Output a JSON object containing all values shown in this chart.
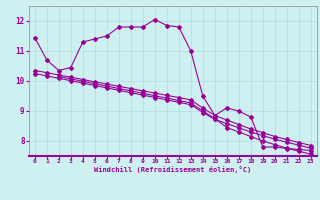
{
  "background_color": "#cff0f0",
  "grid_color": "#aadddd",
  "line_color": "#990099",
  "axis_label_color": "#990099",
  "xlim": [
    -0.5,
    23.5
  ],
  "ylim": [
    7.5,
    12.5
  ],
  "yticks": [
    8,
    9,
    10,
    11,
    12
  ],
  "xticks": [
    0,
    1,
    2,
    3,
    4,
    5,
    6,
    7,
    8,
    9,
    10,
    11,
    12,
    13,
    14,
    15,
    16,
    17,
    18,
    19,
    20,
    21,
    22,
    23
  ],
  "xlabel": "Windchill (Refroidissement éolien,°C)",
  "series1_x": [
    0,
    1,
    2,
    3,
    4,
    5,
    6,
    7,
    8,
    9,
    10,
    11,
    12,
    13,
    14,
    15,
    16,
    17,
    18,
    19,
    20,
    21,
    22,
    23
  ],
  "series1_y": [
    11.45,
    10.7,
    10.35,
    10.45,
    11.3,
    11.4,
    11.5,
    11.8,
    11.8,
    11.8,
    12.05,
    11.85,
    11.8,
    11.0,
    9.5,
    8.85,
    9.1,
    9.0,
    8.8,
    7.8,
    7.8,
    7.75,
    7.72,
    7.68
  ],
  "series2_x": [
    0,
    1,
    2,
    3,
    4,
    5,
    6,
    7,
    8,
    9,
    10,
    11,
    12,
    13,
    14,
    15,
    16,
    17,
    18,
    19,
    20,
    21,
    22,
    23
  ],
  "series2_y": [
    10.35,
    10.28,
    10.2,
    10.13,
    10.05,
    9.97,
    9.9,
    9.82,
    9.75,
    9.67,
    9.6,
    9.52,
    9.45,
    9.37,
    9.1,
    8.85,
    8.7,
    8.55,
    8.4,
    8.28,
    8.15,
    8.05,
    7.95,
    7.85
  ],
  "series3_x": [
    0,
    1,
    2,
    3,
    4,
    5,
    6,
    7,
    8,
    9,
    10,
    11,
    12,
    13,
    14,
    15,
    16,
    17,
    18,
    19,
    20,
    21,
    22,
    23
  ],
  "series3_y": [
    10.25,
    10.17,
    10.09,
    10.01,
    9.93,
    9.85,
    9.77,
    9.69,
    9.61,
    9.53,
    9.45,
    9.37,
    9.29,
    9.21,
    8.95,
    8.72,
    8.58,
    8.44,
    8.3,
    8.18,
    8.06,
    7.96,
    7.86,
    7.76
  ],
  "series4_x": [
    2,
    3,
    4,
    5,
    6,
    7,
    8,
    9,
    10,
    11,
    12,
    13,
    14,
    15,
    16,
    17,
    18,
    19,
    20,
    21,
    22,
    23
  ],
  "series4_y": [
    10.15,
    10.07,
    9.99,
    9.91,
    9.83,
    9.75,
    9.67,
    9.59,
    9.51,
    9.43,
    9.35,
    9.27,
    9.0,
    8.75,
    8.45,
    8.3,
    8.15,
    8.0,
    7.88,
    7.76,
    7.66,
    7.56
  ]
}
